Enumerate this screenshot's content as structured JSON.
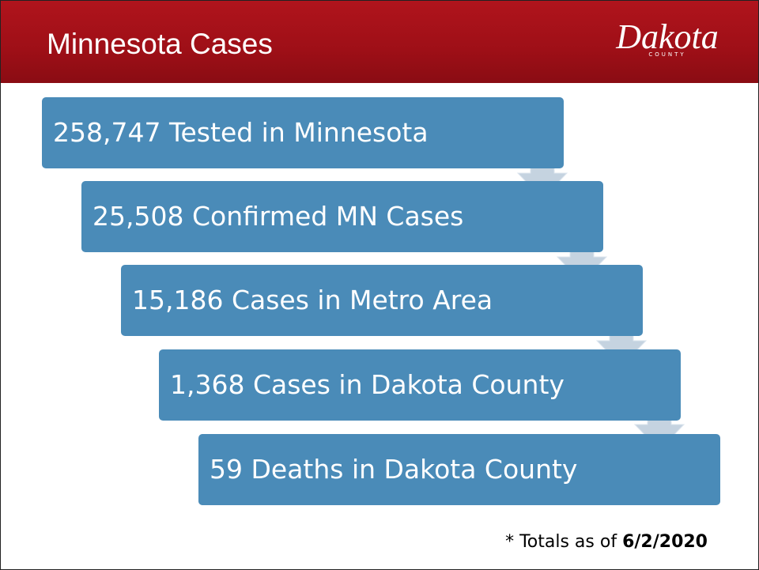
{
  "header": {
    "title": "Minnesota Cases",
    "logo": "Dakota",
    "logo_sub": "COUNTY"
  },
  "steps": [
    "258,747 Tested in Minnesota",
    "25,508 Confirmed MN Cases",
    "15,186 Cases in Metro Area",
    "1,368 Cases in Dakota County",
    "59 Deaths in Dakota County"
  ],
  "footnote": {
    "prefix": "* Totals as of",
    "date": "6/2/2020"
  }
}
